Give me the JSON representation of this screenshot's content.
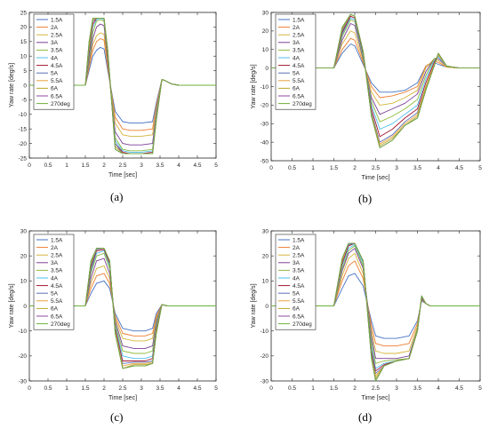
{
  "series_names": [
    "1.5A",
    "2A",
    "2.5A",
    "3A",
    "3.5A",
    "4A",
    "4.5A",
    "5A",
    "5.5A",
    "6A",
    "6.5A",
    "270deg"
  ],
  "series_colors": [
    "#4472c4",
    "#ed7d31",
    "#d4b43a",
    "#7e3f98",
    "#8fbc3f",
    "#4dbeee",
    "#a2142f",
    "#5b6fb5",
    "#e8a33d",
    "#b8a828",
    "#8b4aa0",
    "#6db03b"
  ],
  "xlabel": "Time [sec]",
  "ylabel": "Yaw rate [deg/s]",
  "x_ticks": [
    "0",
    "0.5",
    "1",
    "1.5",
    "2",
    "2.5",
    "3",
    "3.5",
    "4",
    "4.5",
    "5"
  ],
  "chart_data": [
    {
      "type": "line",
      "caption": "(a)",
      "xlim": [
        0,
        5
      ],
      "ylim": [
        -25,
        25
      ],
      "yticks": [
        -25,
        -20,
        -15,
        -10,
        -5,
        0,
        5,
        10,
        15,
        20,
        25
      ],
      "x": [
        0,
        1.5,
        1.6,
        1.7,
        1.8,
        1.9,
        2.0,
        2.1,
        2.3,
        2.5,
        2.7,
        3.0,
        3.3,
        3.4,
        3.55,
        3.65,
        3.8,
        4.0,
        5.0
      ],
      "series": [
        {
          "name": "1.5A",
          "values": [
            0,
            0,
            5,
            10,
            12,
            13,
            12.5,
            5,
            -9,
            -12.5,
            -13,
            -13,
            -12.5,
            -6,
            2,
            1.5,
            0.5,
            0,
            0
          ]
        },
        {
          "name": "2A",
          "values": [
            0,
            0,
            6,
            12,
            15,
            16,
            15.5,
            6,
            -11,
            -15,
            -15.5,
            -15.5,
            -15,
            -7,
            2,
            1.5,
            0.5,
            0,
            0
          ]
        },
        {
          "name": "2.5A",
          "values": [
            0,
            0,
            7,
            14,
            17,
            18,
            17.5,
            7,
            -13,
            -17,
            -17.5,
            -17.5,
            -17,
            -8,
            2,
            1.5,
            0.5,
            0,
            0
          ]
        },
        {
          "name": "3A",
          "values": [
            0,
            0,
            8,
            16,
            20,
            21,
            20.5,
            8,
            -16,
            -20,
            -20.5,
            -20.5,
            -20,
            -9,
            2,
            1.5,
            0.5,
            0,
            0
          ]
        },
        {
          "name": "3.5A",
          "values": [
            0,
            0,
            9,
            18,
            22,
            22.5,
            22,
            9,
            -18,
            -22,
            -22.5,
            -22.5,
            -22,
            -10,
            2,
            1.5,
            0.5,
            0,
            0
          ]
        },
        {
          "name": "4A",
          "values": [
            0,
            0,
            10,
            20,
            22.5,
            23,
            22.5,
            10,
            -19,
            -22.5,
            -23,
            -23,
            -22.5,
            -10,
            2,
            1.5,
            0.5,
            0,
            0
          ]
        },
        {
          "name": "4.5A",
          "values": [
            0,
            0,
            11,
            21,
            23,
            23,
            23,
            10,
            -20,
            -23,
            -23.5,
            -23.5,
            -23,
            -11,
            2,
            1.5,
            0.5,
            0,
            0
          ]
        },
        {
          "name": "5A",
          "values": [
            0,
            0,
            12,
            22,
            23,
            23,
            23,
            11,
            -20,
            -23.5,
            -23.5,
            -23.5,
            -23.5,
            -11,
            2,
            1.5,
            0.5,
            0,
            0
          ]
        },
        {
          "name": "5.5A",
          "values": [
            0,
            0,
            13,
            22.5,
            23,
            23,
            23,
            11,
            -21,
            -23.5,
            -23.5,
            -23.5,
            -23.5,
            -11,
            2,
            1.5,
            0.5,
            0,
            0
          ]
        },
        {
          "name": "6A",
          "values": [
            0,
            0,
            14,
            23,
            23,
            23,
            23,
            12,
            -21,
            -23.5,
            -23.5,
            -23.5,
            -23.5,
            -12,
            2,
            1.5,
            0.5,
            0,
            0
          ]
        },
        {
          "name": "6.5A",
          "values": [
            0,
            0,
            15,
            23,
            23,
            23,
            23,
            12,
            -22,
            -23.5,
            -23.5,
            -23.5,
            -23.5,
            -12,
            2,
            1.5,
            0.5,
            0,
            0
          ]
        },
        {
          "name": "270deg",
          "values": [
            0,
            0,
            15,
            23,
            23,
            23,
            23,
            12,
            -22,
            -23.5,
            -23.5,
            -23.5,
            -23.5,
            -12,
            2,
            1.5,
            0.5,
            0,
            0
          ]
        }
      ]
    },
    {
      "type": "line",
      "caption": "(b)",
      "xlim": [
        0,
        5
      ],
      "ylim": [
        -50,
        30
      ],
      "yticks": [
        -50,
        -40,
        -30,
        -20,
        -10,
        0,
        10,
        20,
        30
      ],
      "x": [
        0,
        1.5,
        1.7,
        1.9,
        2.0,
        2.2,
        2.4,
        2.6,
        2.9,
        3.2,
        3.5,
        3.7,
        3.9,
        4.0,
        4.2,
        4.5,
        5.0
      ],
      "series": [
        {
          "name": "1.5A",
          "values": [
            0,
            0,
            8,
            13,
            12,
            2,
            -8,
            -13,
            -13,
            -12,
            -8,
            1,
            3,
            2,
            0.5,
            0,
            0
          ]
        },
        {
          "name": "2A",
          "values": [
            0,
            0,
            10,
            16,
            15,
            3,
            -10,
            -16,
            -15,
            -13,
            -10,
            1,
            4,
            3,
            0.5,
            0,
            0
          ]
        },
        {
          "name": "2.5A",
          "values": [
            0,
            0,
            13,
            20,
            19,
            4,
            -13,
            -20,
            -19,
            -16,
            -12,
            0,
            5,
            4,
            0.5,
            0,
            0
          ]
        },
        {
          "name": "3A",
          "values": [
            0,
            0,
            15,
            24,
            23,
            5,
            -16,
            -25,
            -22,
            -19,
            -14,
            -2,
            5,
            5,
            1,
            0,
            0
          ]
        },
        {
          "name": "3.5A",
          "values": [
            0,
            0,
            17,
            26,
            25,
            6,
            -18,
            -29,
            -26,
            -22,
            -17,
            -4,
            5,
            6,
            1,
            0,
            0
          ]
        },
        {
          "name": "4A",
          "values": [
            0,
            0,
            18,
            27,
            26,
            7,
            -20,
            -33,
            -30,
            -25,
            -20,
            -6,
            4,
            6,
            1,
            0,
            0
          ]
        },
        {
          "name": "4.5A",
          "values": [
            0,
            0,
            19,
            28,
            27,
            8,
            -22,
            -37,
            -33,
            -27,
            -22,
            -8,
            3,
            7,
            1,
            0,
            0
          ]
        },
        {
          "name": "5A",
          "values": [
            0,
            0,
            20,
            29,
            28,
            9,
            -24,
            -40,
            -36,
            -29,
            -24,
            -10,
            2,
            7,
            1,
            0,
            0
          ]
        },
        {
          "name": "5.5A",
          "values": [
            0,
            0,
            21,
            29,
            28,
            9,
            -25,
            -41,
            -37,
            -30,
            -25,
            -10,
            2,
            7,
            1,
            0,
            0
          ]
        },
        {
          "name": "6A",
          "values": [
            0,
            0,
            21,
            29,
            28,
            9,
            -26,
            -42,
            -38,
            -31,
            -26,
            -11,
            1,
            8,
            1,
            0,
            0
          ]
        },
        {
          "name": "6.5A",
          "values": [
            0,
            0,
            22,
            29,
            28,
            9,
            -26,
            -43,
            -39,
            -31,
            -27,
            -12,
            1,
            8,
            1,
            0,
            0
          ]
        },
        {
          "name": "270deg",
          "values": [
            0,
            0,
            22,
            29,
            28,
            9,
            -26,
            -43,
            -39,
            -31,
            -27,
            -12,
            1,
            8,
            1,
            0,
            0
          ]
        }
      ]
    },
    {
      "type": "line",
      "caption": "(c)",
      "xlim": [
        0,
        5
      ],
      "ylim": [
        -30,
        30
      ],
      "yticks": [
        -30,
        -20,
        -10,
        0,
        10,
        20,
        30
      ],
      "x": [
        0,
        1.5,
        1.65,
        1.8,
        2.0,
        2.15,
        2.3,
        2.5,
        2.8,
        3.1,
        3.3,
        3.4,
        3.55,
        3.7,
        4.0,
        5.0
      ],
      "series": [
        {
          "name": "1.5A",
          "values": [
            0,
            0,
            5,
            9,
            10,
            7,
            -3,
            -9,
            -10,
            -10,
            -9,
            -3,
            0.5,
            0,
            0,
            0
          ]
        },
        {
          "name": "2A",
          "values": [
            0,
            0,
            7,
            12,
            13,
            9,
            -4,
            -11,
            -12,
            -12,
            -11,
            -4,
            0.5,
            0,
            0,
            0
          ]
        },
        {
          "name": "2.5A",
          "values": [
            0,
            0,
            9,
            15,
            16,
            11,
            -5,
            -13,
            -14,
            -14,
            -13,
            -5,
            0.5,
            0,
            0,
            0
          ]
        },
        {
          "name": "3A",
          "values": [
            0,
            0,
            11,
            18,
            19,
            13,
            -6,
            -16,
            -17,
            -17,
            -16,
            -6,
            0.5,
            0,
            0,
            0
          ]
        },
        {
          "name": "3.5A",
          "values": [
            0,
            0,
            13,
            20,
            21,
            15,
            -7,
            -18,
            -19,
            -19,
            -18,
            -7,
            0.5,
            0,
            0,
            0
          ]
        },
        {
          "name": "4A",
          "values": [
            0,
            0,
            14,
            21,
            22,
            16,
            -8,
            -20,
            -21,
            -21,
            -20,
            -8,
            0.5,
            0,
            0,
            0
          ]
        },
        {
          "name": "4.5A",
          "values": [
            0,
            0,
            15,
            22,
            22.5,
            17,
            -9,
            -22,
            -22,
            -22,
            -21,
            -9,
            0.5,
            0,
            0,
            0
          ]
        },
        {
          "name": "5A",
          "values": [
            0,
            0,
            16,
            22.5,
            23,
            18,
            -10,
            -23,
            -22.5,
            -22.5,
            -22,
            -10,
            0.5,
            0,
            0,
            0
          ]
        },
        {
          "name": "5.5A",
          "values": [
            0,
            0,
            17,
            23,
            23,
            18,
            -10,
            -24,
            -23,
            -23,
            -22.5,
            -10,
            0.5,
            0,
            0,
            0
          ]
        },
        {
          "name": "6A",
          "values": [
            0,
            0,
            17,
            23,
            23,
            18,
            -11,
            -25,
            -23.5,
            -23.5,
            -23,
            -11,
            0.5,
            0,
            0,
            0
          ]
        },
        {
          "name": "6.5A",
          "values": [
            0,
            0,
            18,
            23,
            23,
            18,
            -11,
            -25,
            -24,
            -24,
            -23,
            -11,
            0.5,
            0,
            0,
            0
          ]
        },
        {
          "name": "270deg",
          "values": [
            0,
            0,
            18,
            23,
            23,
            18,
            -11,
            -25,
            -24,
            -24,
            -23,
            -11,
            0.5,
            0,
            0,
            0
          ]
        }
      ]
    },
    {
      "type": "line",
      "caption": "(d)",
      "xlim": [
        0,
        5
      ],
      "ylim": [
        -30,
        30
      ],
      "yticks": [
        -30,
        -20,
        -10,
        0,
        10,
        20,
        30
      ],
      "x": [
        0,
        1.5,
        1.7,
        1.85,
        2.0,
        2.2,
        2.4,
        2.5,
        2.7,
        3.0,
        3.3,
        3.5,
        3.6,
        3.7,
        3.8,
        4.0,
        5.0
      ],
      "series": [
        {
          "name": "1.5A",
          "values": [
            0,
            0,
            7,
            12,
            13,
            8,
            -6,
            -12,
            -13,
            -13,
            -12,
            -6,
            2,
            1,
            0,
            0,
            0
          ]
        },
        {
          "name": "2A",
          "values": [
            0,
            0,
            10,
            16,
            18,
            11,
            -8,
            -15,
            -16,
            -16,
            -15,
            -7,
            2.5,
            1,
            0,
            0,
            0
          ]
        },
        {
          "name": "2.5A",
          "values": [
            0,
            0,
            12,
            19,
            21,
            13,
            -10,
            -18,
            -19,
            -19,
            -18,
            -8,
            3,
            1,
            0,
            0,
            0
          ]
        },
        {
          "name": "3A",
          "values": [
            0,
            0,
            14,
            21,
            23,
            15,
            -12,
            -21,
            -21,
            -21,
            -20,
            -9,
            3,
            1,
            0,
            0,
            0
          ]
        },
        {
          "name": "3.5A",
          "values": [
            0,
            0,
            15,
            22,
            24,
            16,
            -14,
            -23,
            -22,
            -21.5,
            -21,
            -9,
            3.5,
            1,
            0,
            0,
            0
          ]
        },
        {
          "name": "4A",
          "values": [
            0,
            0,
            16,
            23,
            24.5,
            17,
            -16,
            -25,
            -23,
            -22,
            -21,
            -10,
            3.5,
            1,
            0,
            0,
            0
          ]
        },
        {
          "name": "4.5A",
          "values": [
            0,
            0,
            17,
            24,
            25,
            18,
            -18,
            -26,
            -23.5,
            -22,
            -21,
            -10,
            3.5,
            1,
            0,
            0,
            0
          ]
        },
        {
          "name": "5A",
          "values": [
            0,
            0,
            18,
            24.5,
            25,
            18,
            -19,
            -27,
            -24,
            -22,
            -21,
            -10,
            3.5,
            1,
            0,
            0,
            0
          ]
        },
        {
          "name": "5.5A",
          "values": [
            0,
            0,
            18,
            25,
            25,
            18,
            -20,
            -28,
            -24,
            -22,
            -21,
            -10,
            4,
            1,
            0,
            0,
            0
          ]
        },
        {
          "name": "6A",
          "values": [
            0,
            0,
            19,
            25,
            25,
            18,
            -20,
            -29,
            -24,
            -22,
            -21,
            -10,
            4,
            1,
            0,
            0,
            0
          ]
        },
        {
          "name": "6.5A",
          "values": [
            0,
            0,
            19,
            25,
            25,
            18,
            -21,
            -30,
            -24,
            -22,
            -21,
            -10,
            4,
            1,
            0,
            0,
            0
          ]
        },
        {
          "name": "270deg",
          "values": [
            0,
            0,
            19,
            25,
            25,
            18,
            -21,
            -30,
            -24,
            -22,
            -21,
            -10,
            4,
            1,
            0,
            0,
            0
          ]
        }
      ]
    }
  ]
}
